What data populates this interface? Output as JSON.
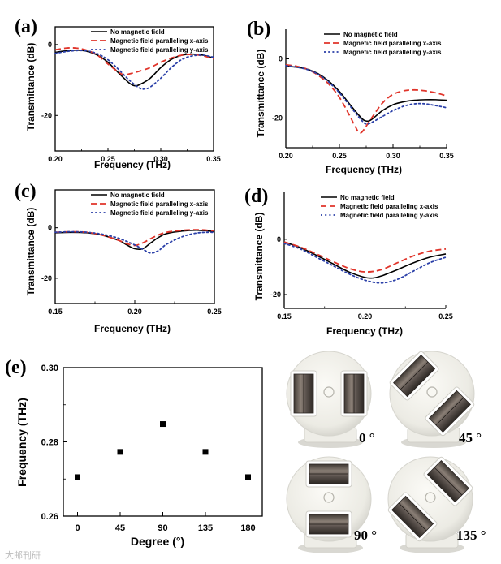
{
  "figure": {
    "watermark": "大邮刊研"
  },
  "chart_data": [
    {
      "id": "a",
      "panel_label": "(a)",
      "type": "line",
      "xlabel": "Frequency (THz)",
      "ylabel": "Transmittance (dB)",
      "xlim": [
        0.2,
        0.35
      ],
      "ylim": [
        -30,
        5
      ],
      "xticks": [
        0.2,
        0.25,
        0.3,
        0.35
      ],
      "xtick_labels": [
        "0.20",
        "0.25",
        "0.30",
        "0.35"
      ],
      "yticks": [
        0,
        -20
      ],
      "ytick_labels": [
        "0",
        "-20"
      ],
      "legend": [
        "No magnetic field",
        "Magnetic field paralleling x-axis",
        "Magnetic field paralleling y-axis"
      ],
      "series": [
        {
          "name": "No magnetic field",
          "style": "solid",
          "color": "#000000",
          "x": [
            0.2,
            0.21,
            0.22,
            0.23,
            0.24,
            0.25,
            0.26,
            0.27,
            0.275,
            0.28,
            0.29,
            0.3,
            0.31,
            0.32,
            0.33,
            0.34,
            0.35
          ],
          "y": [
            -2.2,
            -1.8,
            -1.6,
            -1.9,
            -3.0,
            -5.0,
            -8.0,
            -10.8,
            -11.6,
            -11.3,
            -9.5,
            -6.5,
            -4.2,
            -3.0,
            -2.7,
            -3.0,
            -3.8
          ]
        },
        {
          "name": "Magnetic field paralleling x-axis",
          "style": "dashed",
          "color": "#e0342a",
          "x": [
            0.2,
            0.21,
            0.22,
            0.23,
            0.24,
            0.25,
            0.26,
            0.265,
            0.27,
            0.28,
            0.29,
            0.3,
            0.31,
            0.32,
            0.33,
            0.34,
            0.35
          ],
          "y": [
            -1.5,
            -1.0,
            -1.0,
            -1.6,
            -3.0,
            -5.5,
            -7.8,
            -8.5,
            -8.3,
            -7.5,
            -6.5,
            -5.0,
            -3.8,
            -3.0,
            -2.8,
            -3.2,
            -4.0
          ]
        },
        {
          "name": "Magnetic field paralleling y-axis",
          "style": "dotted",
          "color": "#2a3fa8",
          "x": [
            0.2,
            0.21,
            0.22,
            0.23,
            0.24,
            0.25,
            0.26,
            0.27,
            0.28,
            0.285,
            0.29,
            0.3,
            0.31,
            0.32,
            0.33,
            0.34,
            0.35
          ],
          "y": [
            -2.5,
            -2.0,
            -1.7,
            -1.8,
            -2.6,
            -4.3,
            -7.0,
            -10.0,
            -12.3,
            -12.5,
            -12.0,
            -9.5,
            -6.5,
            -4.2,
            -3.2,
            -3.0,
            -3.6
          ]
        }
      ]
    },
    {
      "id": "b",
      "panel_label": "(b)",
      "type": "line",
      "xlabel": "Frequency (THz)",
      "ylabel": "Transmittance (dB)",
      "xlim": [
        0.2,
        0.35
      ],
      "ylim": [
        -30,
        10
      ],
      "xticks": [
        0.2,
        0.25,
        0.3,
        0.35
      ],
      "xtick_labels": [
        "0.20",
        "0.25",
        "0.30",
        "0.35"
      ],
      "yticks": [
        0,
        -20
      ],
      "ytick_labels": [
        "0",
        "-20"
      ],
      "legend": [
        "No magnetic field",
        "Magnetic field paralleling x-axis",
        "Magnetic field paralleling y-axis"
      ],
      "series": [
        {
          "name": "No magnetic field",
          "style": "solid",
          "color": "#000000",
          "x": [
            0.2,
            0.21,
            0.22,
            0.23,
            0.24,
            0.25,
            0.26,
            0.27,
            0.275,
            0.28,
            0.29,
            0.3,
            0.31,
            0.32,
            0.33,
            0.34,
            0.35
          ],
          "y": [
            -2.5,
            -2.8,
            -3.5,
            -5.0,
            -7.5,
            -11.0,
            -15.5,
            -19.8,
            -21.0,
            -20.5,
            -17.5,
            -15.5,
            -14.5,
            -14.0,
            -13.8,
            -13.8,
            -14.0
          ]
        },
        {
          "name": "Magnetic field paralleling x-axis",
          "style": "dashed",
          "color": "#e0342a",
          "x": [
            0.2,
            0.21,
            0.22,
            0.23,
            0.24,
            0.25,
            0.26,
            0.265,
            0.27,
            0.28,
            0.29,
            0.3,
            0.31,
            0.32,
            0.33,
            0.34,
            0.35
          ],
          "y": [
            -2.0,
            -2.5,
            -3.5,
            -5.5,
            -8.5,
            -13.0,
            -19.5,
            -23.0,
            -25.0,
            -20.0,
            -15.0,
            -12.0,
            -10.8,
            -10.5,
            -10.8,
            -11.5,
            -12.5
          ]
        },
        {
          "name": "Magnetic field paralleling y-axis",
          "style": "dotted",
          "color": "#2a3fa8",
          "x": [
            0.2,
            0.21,
            0.22,
            0.23,
            0.24,
            0.25,
            0.26,
            0.27,
            0.275,
            0.28,
            0.29,
            0.3,
            0.31,
            0.32,
            0.33,
            0.34,
            0.35
          ],
          "y": [
            -2.3,
            -2.8,
            -3.6,
            -5.2,
            -7.8,
            -11.5,
            -16.0,
            -20.5,
            -22.0,
            -21.5,
            -19.5,
            -17.5,
            -16.0,
            -15.2,
            -15.2,
            -15.8,
            -16.5
          ]
        }
      ]
    },
    {
      "id": "c",
      "panel_label": "(c)",
      "type": "line",
      "xlabel": "Frequency (THz)",
      "ylabel": "Transmittance (dB)",
      "xlim": [
        0.15,
        0.25
      ],
      "ylim": [
        -30,
        15
      ],
      "xticks": [
        0.15,
        0.2,
        0.25
      ],
      "xtick_labels": [
        "0.15",
        "0.20",
        "0.25"
      ],
      "yticks": [
        0,
        -20
      ],
      "ytick_labels": [
        "0",
        "-20"
      ],
      "legend": [
        "No magnetic field",
        "Magnetic field paralleling x-axis",
        "Magnetic field paralleling y-axis"
      ],
      "series": [
        {
          "name": "No magnetic field",
          "style": "solid",
          "color": "#000000",
          "x": [
            0.15,
            0.16,
            0.17,
            0.18,
            0.19,
            0.195,
            0.2,
            0.205,
            0.21,
            0.215,
            0.22,
            0.23,
            0.24,
            0.25
          ],
          "y": [
            -2.0,
            -1.8,
            -2.0,
            -3.0,
            -5.0,
            -6.8,
            -8.3,
            -8.3,
            -6.0,
            -3.8,
            -2.3,
            -1.3,
            -1.0,
            -1.5
          ]
        },
        {
          "name": "Magnetic field paralleling x-axis",
          "style": "dashed",
          "color": "#e0342a",
          "x": [
            0.15,
            0.16,
            0.17,
            0.18,
            0.19,
            0.195,
            0.2,
            0.205,
            0.21,
            0.215,
            0.22,
            0.23,
            0.24,
            0.25
          ],
          "y": [
            -1.8,
            -1.6,
            -1.8,
            -3.0,
            -5.0,
            -6.3,
            -7.0,
            -6.0,
            -4.3,
            -2.8,
            -1.8,
            -1.0,
            -0.8,
            -1.2
          ]
        },
        {
          "name": "Magnetic field paralleling y-axis",
          "style": "dotted",
          "color": "#2a3fa8",
          "x": [
            0.15,
            0.16,
            0.17,
            0.18,
            0.19,
            0.2,
            0.205,
            0.21,
            0.215,
            0.22,
            0.23,
            0.24,
            0.25
          ],
          "y": [
            -1.8,
            -1.6,
            -1.8,
            -2.6,
            -4.2,
            -6.8,
            -8.5,
            -10.0,
            -9.0,
            -6.5,
            -3.5,
            -2.0,
            -1.8
          ]
        }
      ]
    },
    {
      "id": "d",
      "panel_label": "(d)",
      "type": "line",
      "xlabel": "Frequency (THz)",
      "ylabel": "Transmittance (dB)",
      "xlim": [
        0.15,
        0.25
      ],
      "ylim": [
        -25,
        17
      ],
      "xticks": [
        0.15,
        0.2,
        0.25
      ],
      "xtick_labels": [
        "0.15",
        "0.20",
        "0.25"
      ],
      "yticks": [
        0,
        -20
      ],
      "ytick_labels": [
        "0",
        "-20"
      ],
      "legend": [
        "No magnetic field",
        "Magnetic field paralleling x-axis",
        "Magnetic field paralleling y-axis"
      ],
      "series": [
        {
          "name": "No magnetic field",
          "style": "solid",
          "color": "#000000",
          "x": [
            0.15,
            0.16,
            0.17,
            0.18,
            0.19,
            0.2,
            0.205,
            0.21,
            0.22,
            0.23,
            0.24,
            0.25
          ],
          "y": [
            -1.0,
            -3.0,
            -5.8,
            -8.8,
            -11.8,
            -13.8,
            -14.0,
            -13.3,
            -11.0,
            -8.5,
            -6.5,
            -5.3
          ]
        },
        {
          "name": "Magnetic field paralleling x-axis",
          "style": "dashed",
          "color": "#e0342a",
          "x": [
            0.15,
            0.16,
            0.17,
            0.18,
            0.19,
            0.2,
            0.21,
            0.22,
            0.23,
            0.24,
            0.25
          ],
          "y": [
            -1.0,
            -2.8,
            -5.3,
            -8.0,
            -10.5,
            -11.8,
            -11.0,
            -8.5,
            -6.0,
            -4.3,
            -3.5
          ]
        },
        {
          "name": "Magnetic field paralleling y-axis",
          "style": "dotted",
          "color": "#2a3fa8",
          "x": [
            0.15,
            0.16,
            0.17,
            0.18,
            0.19,
            0.2,
            0.21,
            0.22,
            0.23,
            0.24,
            0.25
          ],
          "y": [
            -1.5,
            -3.5,
            -6.5,
            -9.5,
            -12.5,
            -14.8,
            -15.8,
            -14.5,
            -11.5,
            -8.5,
            -6.5
          ]
        }
      ]
    },
    {
      "id": "e",
      "panel_label": "(e)",
      "type": "scatter",
      "xlabel": "Degree (°)",
      "ylabel": "Frequency (THz)",
      "xlim": [
        -15,
        195
      ],
      "ylim": [
        0.26,
        0.3
      ],
      "xticks": [
        0,
        45,
        90,
        135,
        180
      ],
      "xtick_labels": [
        "0",
        "45",
        "90",
        "135",
        "180"
      ],
      "yticks": [
        0.26,
        0.28,
        0.3
      ],
      "ytick_labels": [
        "0.26",
        "0.28",
        "0.30"
      ],
      "x": [
        0,
        45,
        90,
        135,
        180
      ],
      "y": [
        0.2705,
        0.2773,
        0.2848,
        0.2773,
        0.2705
      ]
    }
  ],
  "photos": [
    {
      "angle_label": "0 °",
      "rotation_deg": 0
    },
    {
      "angle_label": "45 °",
      "rotation_deg": 45
    },
    {
      "angle_label": "90 °",
      "rotation_deg": 90
    },
    {
      "angle_label": "135 °",
      "rotation_deg": 135
    }
  ]
}
